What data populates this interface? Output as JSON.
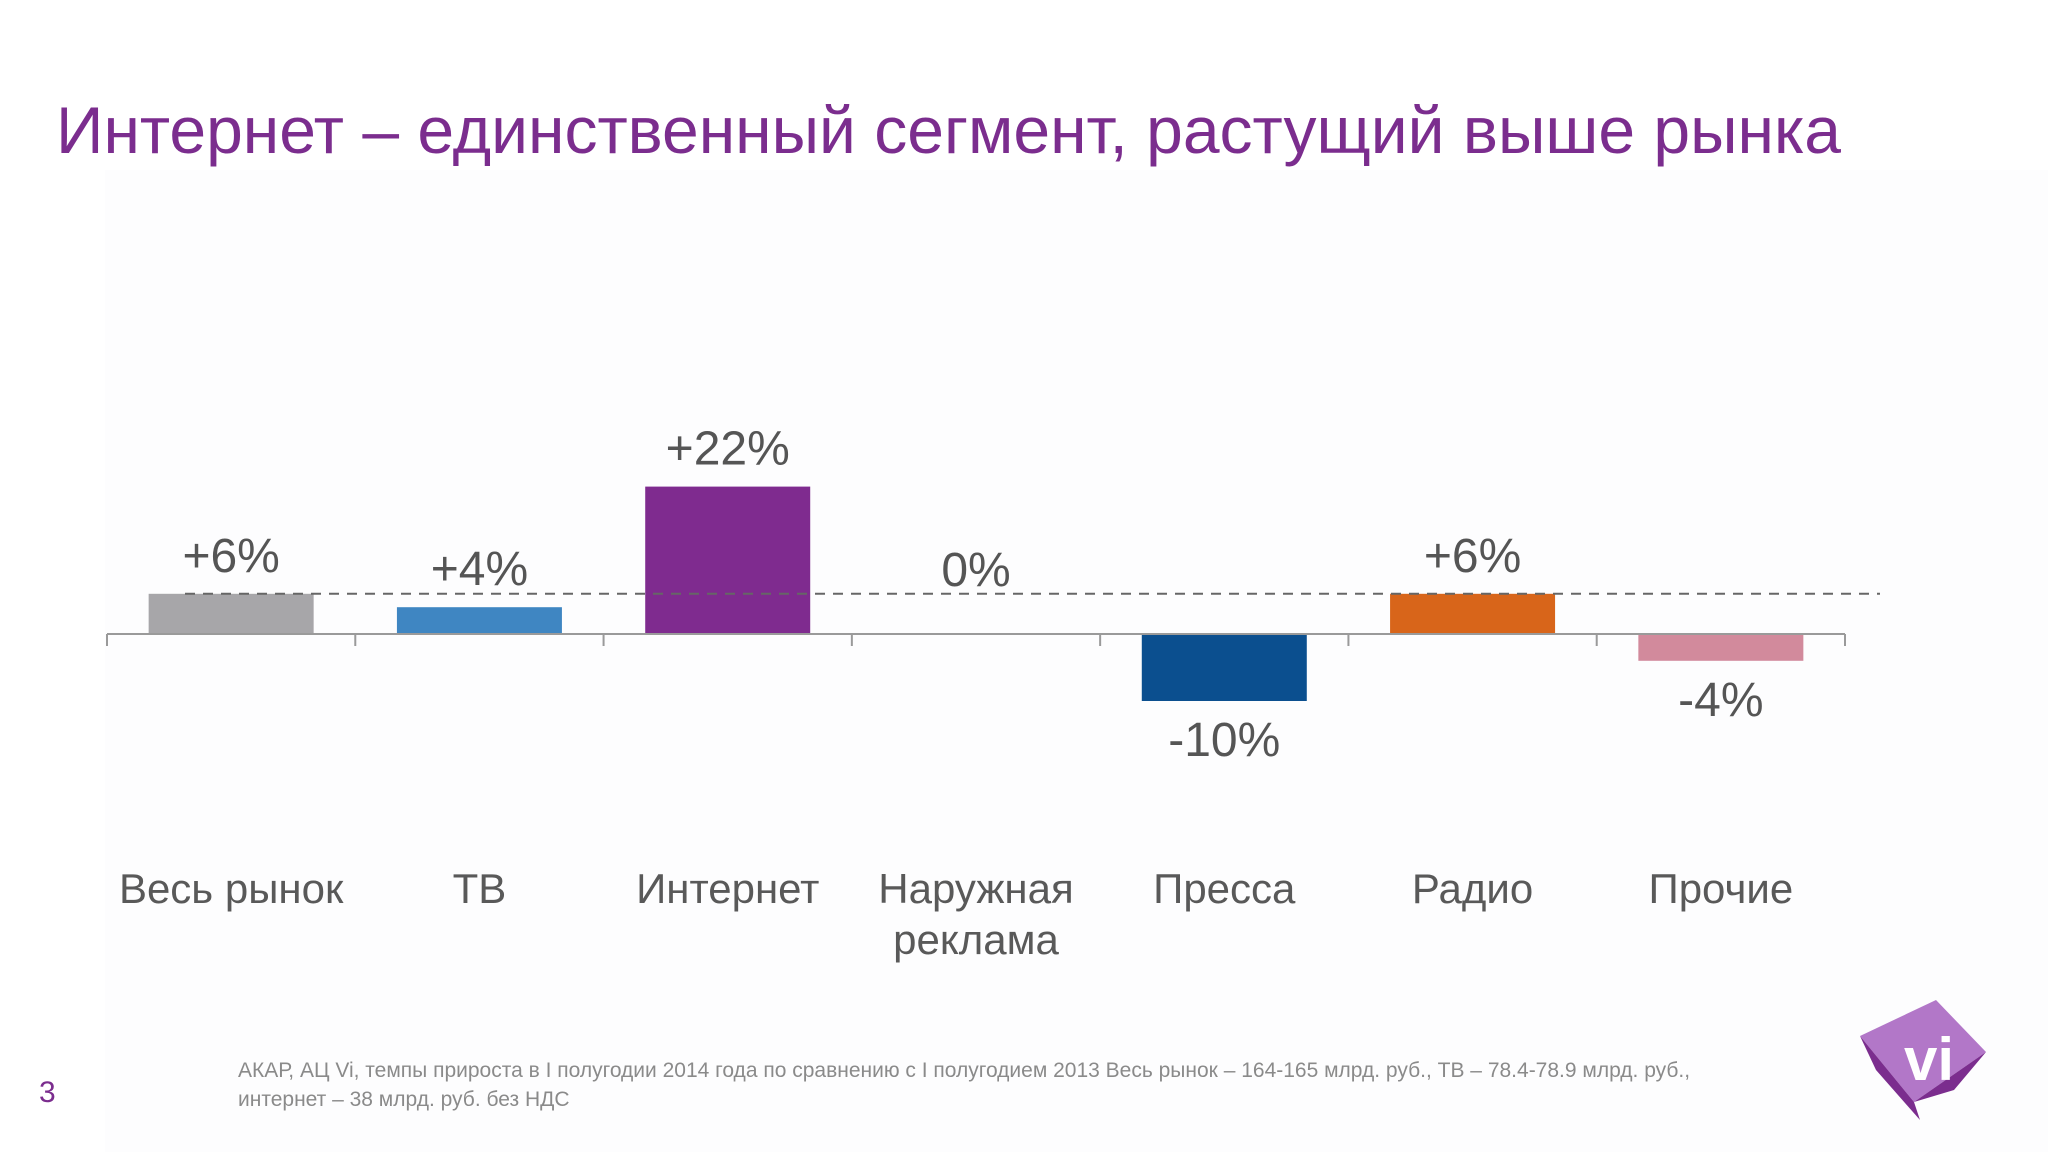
{
  "title": "Интернет – единственный сегмент, растущий выше рынка",
  "chart_data": {
    "type": "bar",
    "categories": [
      "Весь рынок",
      "ТВ",
      "Интернет",
      "Наружная реклама",
      "Пресса",
      "Радио",
      "Прочие"
    ],
    "category_label_lines": [
      [
        "Весь рынок"
      ],
      [
        "ТВ"
      ],
      [
        "Интернет"
      ],
      [
        "Наружная",
        "реклама"
      ],
      [
        "Пресса"
      ],
      [
        "Радио"
      ],
      [
        "Прочие"
      ]
    ],
    "values": [
      6,
      4,
      22,
      0,
      -10,
      6,
      -4
    ],
    "data_labels": [
      "+6%",
      "+4%",
      "+22%",
      "0%",
      "-10%",
      "+6%",
      "-4%"
    ],
    "colors": [
      "#a7a6a9",
      "#3f86c2",
      "#7f2b8f",
      "#9b9b9b",
      "#0b4f8f",
      "#d8651a",
      "#d28a9c"
    ],
    "unit": "%",
    "reference_line": {
      "value": 6,
      "style": "dashed",
      "color": "#666666"
    },
    "ylim": [
      -10,
      22
    ],
    "grid": false,
    "legend": "none"
  },
  "footnote": "АКАР, АЦ Vi, темпы прироста в I полугодии 2014 года по сравнению с I полугодием 2013 Весь рынок – 164-165 млрд. руб., ТВ – 78.4-78.9 млрд. руб., интернет – 38 млрд. руб. без НДС",
  "page_number": "3",
  "logo": {
    "text": "vi",
    "colors": {
      "light": "#b277c8",
      "dark": "#7b2d8e"
    }
  }
}
